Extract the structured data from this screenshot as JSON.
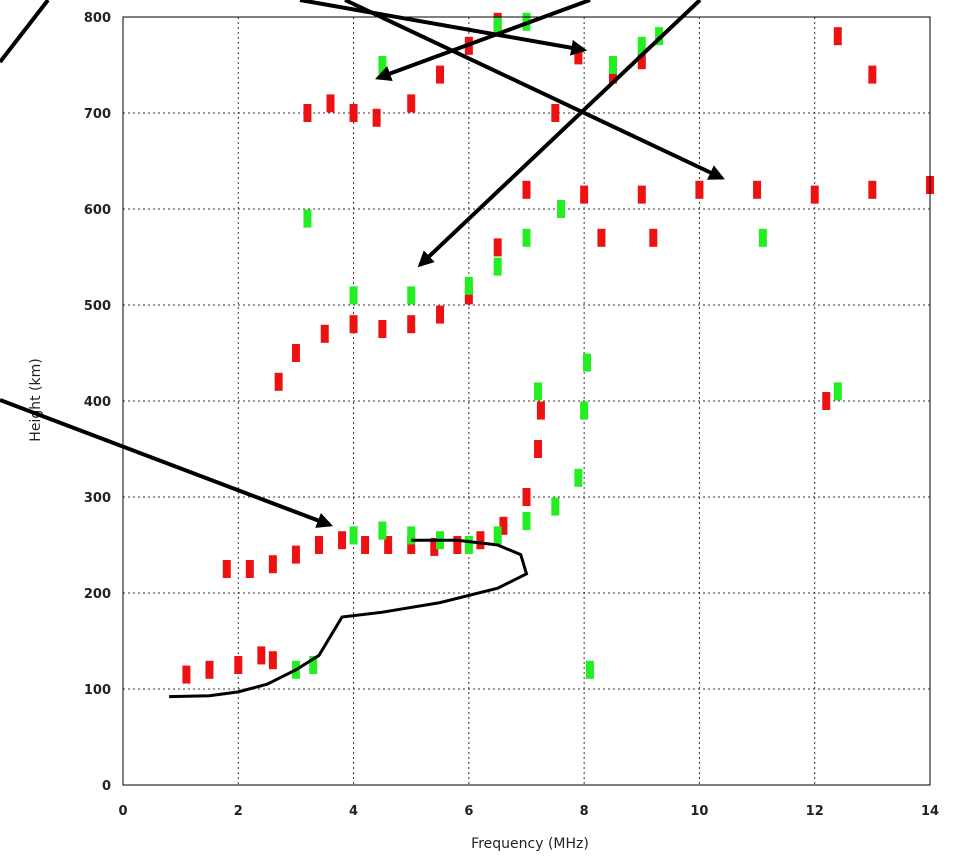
{
  "chart_data": {
    "type": "scatter",
    "x_label": "Frequency (MHz)",
    "y_label": "Height (km)",
    "xlim": [
      0,
      14
    ],
    "ylim": [
      0,
      800
    ],
    "xticks": [
      0,
      2,
      4,
      6,
      8,
      10,
      12,
      14
    ],
    "yticks": [
      0,
      100,
      200,
      300,
      400,
      500,
      600,
      700,
      800
    ],
    "grid": true,
    "series": [
      {
        "color": "#ee1111",
        "type": "scatter",
        "x": [
          1.1,
          1.5,
          2.0,
          2.4,
          2.6,
          1.8,
          2.2,
          2.6,
          3.0,
          3.4,
          3.8,
          4.2,
          4.6,
          5.0,
          5.4,
          5.8,
          6.2,
          6.6,
          7.0,
          7.2,
          7.25,
          2.7,
          3.0,
          3.5,
          4.0,
          4.5,
          5.0,
          5.5,
          6.0,
          6.5,
          7.0,
          7.5,
          7.9,
          3.2,
          3.6,
          4.0,
          4.4,
          5.0,
          5.5,
          6.0,
          6.5,
          8.0,
          9.0,
          10.0,
          11.0,
          12.0,
          13.0,
          14.0,
          8.5,
          9.0,
          12.4,
          13.0,
          8.3,
          9.2,
          12.2
        ],
        "values": [
          115,
          120,
          125,
          135,
          130,
          225,
          225,
          230,
          240,
          250,
          255,
          250,
          250,
          250,
          248,
          250,
          255,
          270,
          300,
          350,
          390,
          420,
          450,
          470,
          480,
          475,
          480,
          490,
          510,
          560,
          620,
          700,
          760,
          700,
          710,
          700,
          695,
          710,
          740,
          770,
          795,
          615,
          615,
          620,
          620,
          615,
          620,
          625,
          740,
          755,
          780,
          740,
          570,
          570,
          400
        ]
      },
      {
        "color": "#22ee22",
        "type": "scatter",
        "x": [
          3.0,
          3.3,
          4.0,
          4.5,
          5.0,
          5.5,
          6.0,
          6.5,
          7.0,
          7.5,
          7.9,
          8.0,
          8.05,
          4.0,
          5.0,
          6.0,
          6.5,
          7.0,
          7.6,
          6.5,
          7.0,
          8.5,
          9.0,
          9.3,
          8.1,
          7.2,
          12.4,
          3.2,
          4.5,
          11.1
        ],
        "values": [
          120,
          125,
          260,
          265,
          260,
          255,
          250,
          260,
          275,
          290,
          320,
          390,
          440,
          510,
          510,
          520,
          540,
          570,
          600,
          790,
          795,
          750,
          770,
          780,
          120,
          410,
          410,
          590,
          750,
          570
        ]
      },
      {
        "color": "#000000",
        "type": "line",
        "x": [
          0.8,
          1.5,
          2.0,
          2.5,
          3.0,
          3.4,
          3.6,
          3.8,
          4.5,
          5.5,
          6.5,
          7.0,
          6.9,
          6.5,
          5.8,
          5.0
        ],
        "values": [
          92,
          93,
          97,
          105,
          120,
          135,
          155,
          175,
          180,
          190,
          205,
          220,
          240,
          250,
          255,
          255
        ]
      }
    ]
  }
}
